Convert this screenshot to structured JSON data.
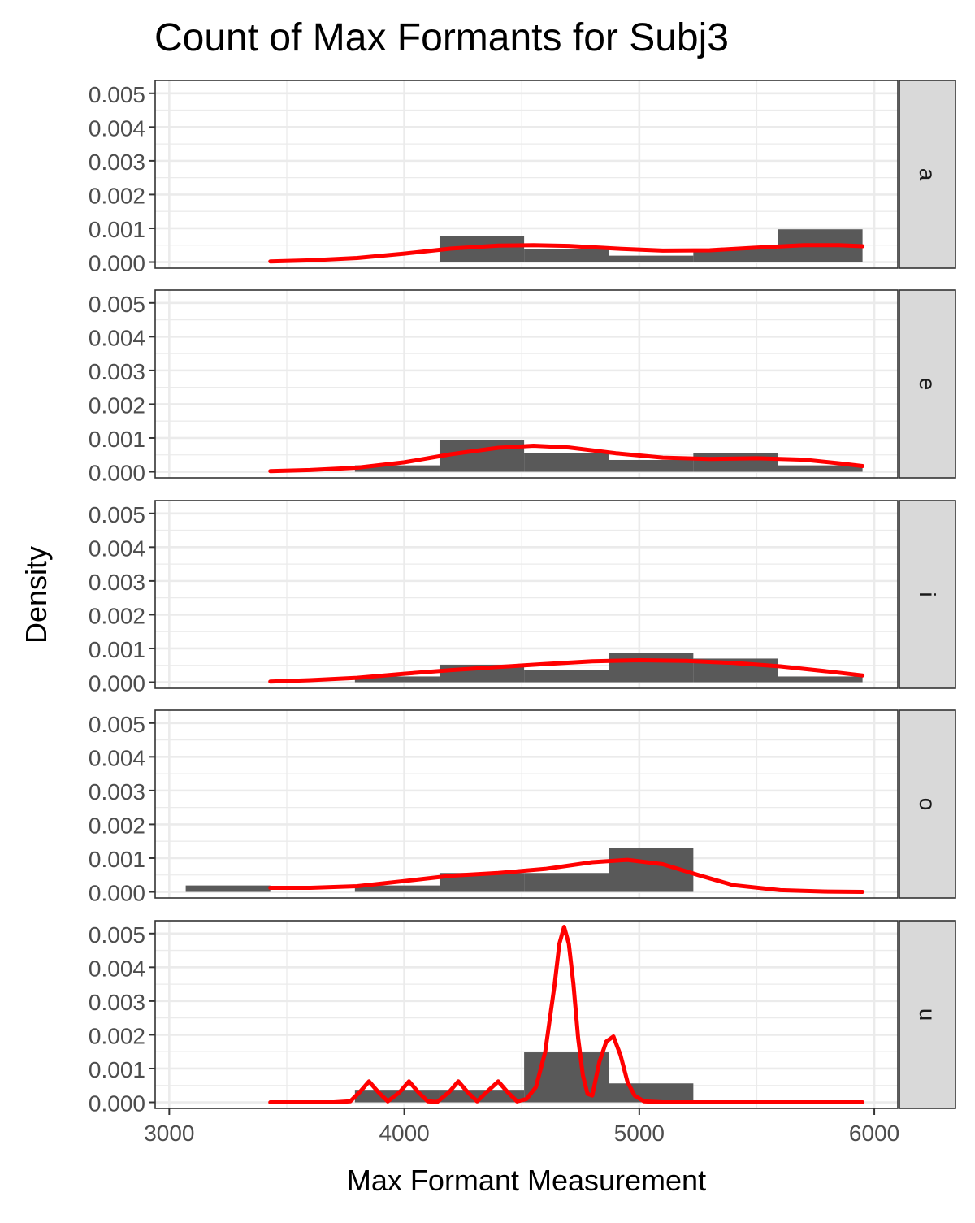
{
  "chart_data": {
    "type": "histogram",
    "title": "Count of Max Formants for Subj3",
    "xlabel": "Max Formant Measurement",
    "ylabel": "Density",
    "xlim": [
      2940,
      6100
    ],
    "ylim": [
      -0.00018,
      0.00538
    ],
    "x_ticks": [
      3000,
      4000,
      5000,
      6000
    ],
    "x_tick_labels": [
      "3000",
      "4000",
      "5000",
      "6000"
    ],
    "y_ticks": [
      0.0,
      0.001,
      0.002,
      0.003,
      0.004,
      0.005
    ],
    "y_tick_labels": [
      "0.000",
      "0.001",
      "0.002",
      "0.003",
      "0.004",
      "0.005"
    ],
    "grid": true,
    "colors": {
      "bar": "#595959",
      "density": "#ff0000",
      "strip_bg": "#d9d9d9",
      "grid": "#ebebeb",
      "panel_border": "#333333"
    },
    "bin_edges": [
      3070,
      3430,
      3790,
      4150,
      4510,
      4870,
      5230,
      5590,
      5950
    ],
    "density_x_range": [
      3430,
      5950
    ],
    "panels": [
      {
        "label": "a",
        "bar_values": [
          0,
          0,
          0,
          0.00078,
          0.00039,
          0.00019,
          0.00039,
          0.00097
        ],
        "density_x": [
          3430,
          3600,
          3800,
          4000,
          4200,
          4400,
          4550,
          4700,
          4900,
          5100,
          5300,
          5500,
          5700,
          5850,
          5950
        ],
        "density_y": [
          2e-05,
          5e-05,
          0.00012,
          0.00025,
          0.0004,
          0.00049,
          0.0005,
          0.00048,
          0.0004,
          0.00034,
          0.00035,
          0.00043,
          0.0005,
          0.0005,
          0.00047
        ]
      },
      {
        "label": "e",
        "bar_values": [
          0,
          0,
          0.00019,
          0.00093,
          0.00055,
          0.00035,
          0.00055,
          0.00019
        ],
        "density_x": [
          3430,
          3600,
          3800,
          4000,
          4200,
          4400,
          4550,
          4700,
          4900,
          5100,
          5300,
          5500,
          5700,
          5850,
          5950
        ],
        "density_y": [
          2e-05,
          5e-05,
          0.00012,
          0.00028,
          0.00052,
          0.00071,
          0.00077,
          0.00072,
          0.00055,
          0.00042,
          0.00038,
          0.0004,
          0.00036,
          0.00025,
          0.00017
        ]
      },
      {
        "label": "i",
        "bar_values": [
          0,
          0,
          0.00017,
          0.00052,
          0.00035,
          0.00087,
          0.0007,
          0.00017
        ],
        "density_x": [
          3430,
          3600,
          3800,
          4000,
          4200,
          4400,
          4600,
          4800,
          5000,
          5200,
          5400,
          5600,
          5800,
          5950
        ],
        "density_y": [
          2e-05,
          6e-05,
          0.00013,
          0.00025,
          0.00036,
          0.00045,
          0.00054,
          0.00062,
          0.00065,
          0.00063,
          0.00057,
          0.00047,
          0.00032,
          0.0002
        ]
      },
      {
        "label": "o",
        "bar_values": [
          0.00019,
          0,
          0.00019,
          0.00056,
          0.00056,
          0.0013,
          0,
          0
        ],
        "density_x": [
          3430,
          3600,
          3800,
          4000,
          4200,
          4400,
          4600,
          4800,
          4950,
          5100,
          5250,
          5400,
          5600,
          5800,
          5950
        ],
        "density_y": [
          0.00012,
          0.00012,
          0.00017,
          0.00032,
          0.00048,
          0.00056,
          0.00068,
          0.00088,
          0.00095,
          0.00082,
          0.0005,
          0.0002,
          5e-05,
          1e-05,
          0
        ],
        "ticks_visible": false
      },
      {
        "label": "u",
        "bar_values": [
          0,
          0,
          0.00037,
          0.00037,
          0.00148,
          0.00056,
          0,
          0
        ],
        "density_x": [
          3430,
          3700,
          3770,
          3810,
          3850,
          3890,
          3930,
          3980,
          4020,
          4060,
          4100,
          4140,
          4190,
          4230,
          4270,
          4310,
          4350,
          4400,
          4440,
          4480,
          4520,
          4560,
          4600,
          4640,
          4660,
          4680,
          4700,
          4720,
          4740,
          4760,
          4780,
          4800,
          4830,
          4860,
          4890,
          4920,
          4950,
          4980,
          5020,
          5100,
          5300,
          5950
        ],
        "density_y": [
          0,
          0,
          3e-05,
          0.0003,
          0.00062,
          0.0003,
          3e-05,
          0.0003,
          0.00062,
          0.0003,
          3e-05,
          1e-05,
          0.0003,
          0.00062,
          0.0003,
          3e-05,
          0.0003,
          0.00062,
          0.0003,
          3e-05,
          0.0001,
          0.00045,
          0.0015,
          0.0035,
          0.0047,
          0.0052,
          0.0047,
          0.0035,
          0.0019,
          0.0008,
          0.00025,
          0.0002,
          0.0012,
          0.0018,
          0.00195,
          0.0014,
          0.0006,
          0.0002,
          3e-05,
          0,
          0,
          0
        ]
      }
    ]
  }
}
